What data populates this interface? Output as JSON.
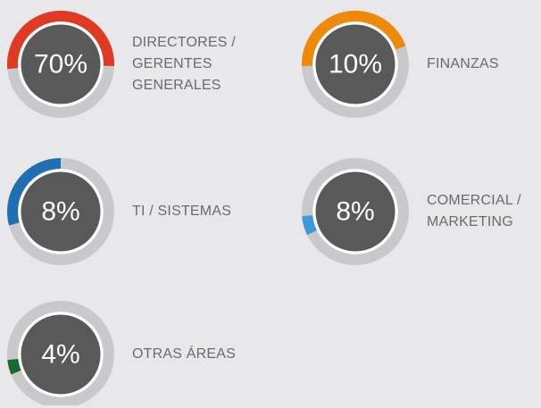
{
  "chart_data": {
    "type": "gauge",
    "categories": [
      "DIRECTORES / GERENTES GENERALES",
      "FINANZAS",
      "TI / SISTEMAS",
      "COMERCIAL / MARKETING",
      "OTRAS ÁREAS"
    ],
    "values": [
      70,
      10,
      8,
      8,
      4
    ],
    "value_labels": [
      "70%",
      "10%",
      "8%",
      "8%",
      "4%"
    ],
    "colors": [
      "#e03a22",
      "#ee8a07",
      "#1f6fb2",
      "#3d9ad8",
      "#176b2f"
    ]
  }
}
